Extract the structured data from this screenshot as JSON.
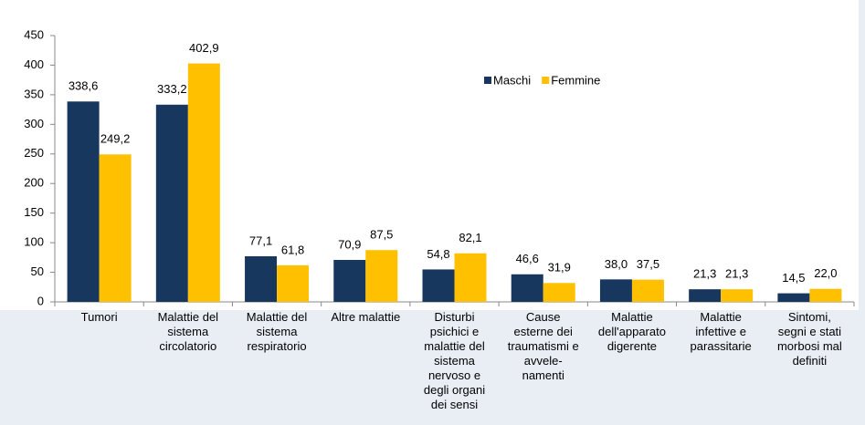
{
  "chart_data": {
    "type": "bar",
    "categories": [
      "Tumori",
      "Malattie del\nsistema\ncircolatorio",
      "Malattie del\nsistema\nrespiratorio",
      "Altre malattie",
      "Disturbi\npsichici e\nmalattie del\nsistema\nnervoso e\ndegli organi\ndei sensi",
      "Cause\nesterne dei\ntraumatismi e\navvele-\nnamenti",
      "Malattie\ndell'apparato\ndigerente",
      "Malattie\ninfettive e\nparassitarie",
      "Sintomi,\nsegni e stati\nmorbosi mal\ndefiniti"
    ],
    "series": [
      {
        "name": "Maschi",
        "color": "#17375e",
        "values": [
          338.6,
          333.2,
          77.1,
          70.9,
          54.8,
          46.6,
          38.0,
          21.3,
          14.5
        ],
        "value_labels": [
          "338,6",
          "333,2",
          "77,1",
          "70,9",
          "54,8",
          "46,6",
          "38,0",
          "21,3",
          "14,5"
        ]
      },
      {
        "name": "Femmine",
        "color": "#ffc000",
        "values": [
          249.2,
          402.9,
          61.8,
          87.5,
          82.1,
          31.9,
          37.5,
          21.3,
          22.0
        ],
        "value_labels": [
          "249,2",
          "402,9",
          "61,8",
          "87,5",
          "82,1",
          "31,9",
          "37,5",
          "21,3",
          "22,0"
        ]
      }
    ],
    "ylim": [
      0,
      450
    ],
    "yticks": [
      0,
      50,
      100,
      150,
      200,
      250,
      300,
      350,
      400,
      450
    ],
    "legend": "top-center"
  }
}
